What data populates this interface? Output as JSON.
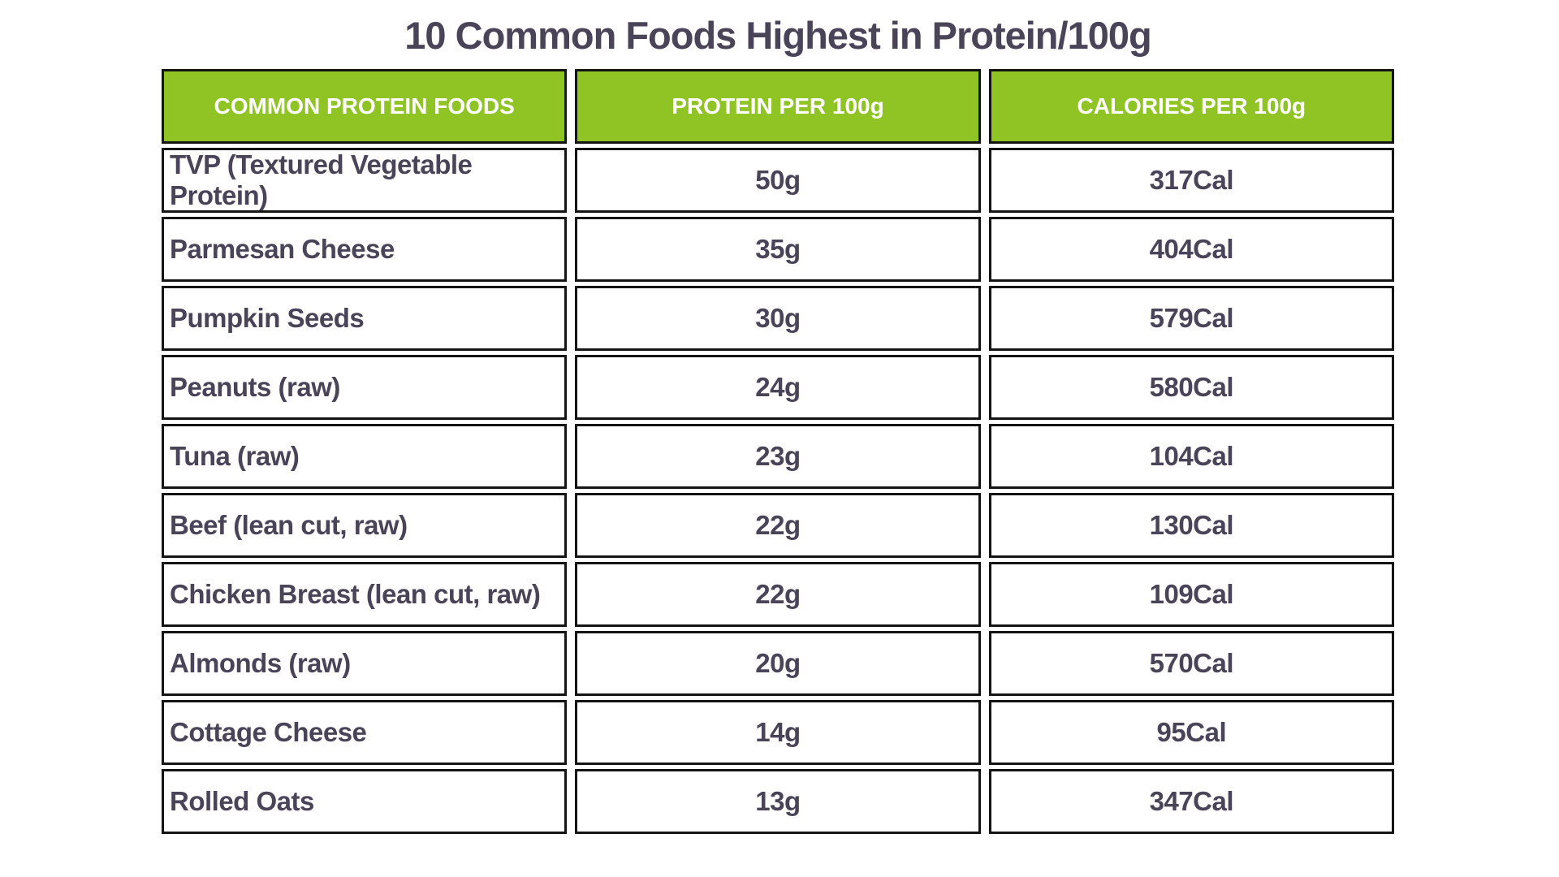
{
  "title": "10 Common Foods Highest in Protein/100g",
  "colors": {
    "background": "#ffffff",
    "header_bg": "#90c425",
    "header_text": "#ffffff",
    "body_text": "#4a4458",
    "border": "#141414"
  },
  "table": {
    "columns": {
      "food": "COMMON PROTEIN FOODS",
      "protein": "PROTEIN PER 100g",
      "calories": "CALORIES PER 100g"
    },
    "rows": [
      {
        "food": "TVP (Textured Vegetable Protein)",
        "protein": "50g",
        "calories": "317Cal"
      },
      {
        "food": "Parmesan Cheese",
        "protein": "35g",
        "calories": "404Cal"
      },
      {
        "food": "Pumpkin Seeds",
        "protein": "30g",
        "calories": "579Cal"
      },
      {
        "food": "Peanuts (raw)",
        "protein": "24g",
        "calories": "580Cal"
      },
      {
        "food": "Tuna (raw)",
        "protein": "23g",
        "calories": "104Cal"
      },
      {
        "food": "Beef (lean cut, raw)",
        "protein": "22g",
        "calories": "130Cal"
      },
      {
        "food": "Chicken Breast (lean cut, raw)",
        "protein": "22g",
        "calories": "109Cal"
      },
      {
        "food": "Almonds (raw)",
        "protein": "20g",
        "calories": "570Cal"
      },
      {
        "food": "Cottage Cheese",
        "protein": "14g",
        "calories": "95Cal"
      },
      {
        "food": "Rolled Oats",
        "protein": "13g",
        "calories": "347Cal"
      }
    ]
  },
  "chart_data": {
    "type": "table",
    "title": "10 Common Foods Highest in Protein/100g",
    "columns": [
      "COMMON PROTEIN FOODS",
      "PROTEIN PER 100g",
      "CALORIES PER 100g"
    ],
    "categories": [
      "TVP (Textured Vegetable Protein)",
      "Parmesan Cheese",
      "Pumpkin Seeds",
      "Peanuts (raw)",
      "Tuna (raw)",
      "Beef (lean cut, raw)",
      "Chicken Breast (lean cut, raw)",
      "Almonds (raw)",
      "Cottage Cheese",
      "Rolled Oats"
    ],
    "series": [
      {
        "name": "Protein per 100g (g)",
        "values": [
          50,
          35,
          30,
          24,
          23,
          22,
          22,
          20,
          14,
          13
        ]
      },
      {
        "name": "Calories per 100g (Cal)",
        "values": [
          317,
          404,
          579,
          580,
          104,
          130,
          109,
          570,
          95,
          347
        ]
      }
    ],
    "layout": {
      "header_position": "top",
      "grid": "boxed-cells",
      "legend": "none"
    }
  }
}
